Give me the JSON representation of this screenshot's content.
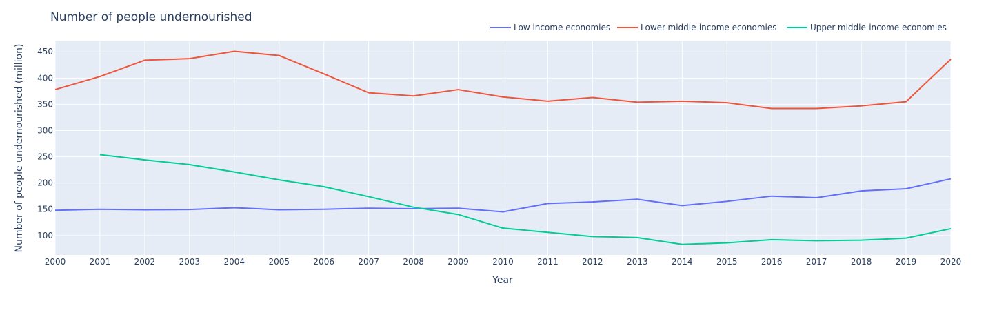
{
  "chart_data": {
    "type": "line",
    "title": "Number of people undernourished",
    "xlabel": "Year",
    "ylabel": "Number of people undernourished (million)",
    "x": [
      2000,
      2001,
      2002,
      2003,
      2004,
      2005,
      2006,
      2007,
      2008,
      2009,
      2010,
      2011,
      2012,
      2013,
      2014,
      2015,
      2016,
      2017,
      2018,
      2019,
      2020
    ],
    "xlim": [
      2000,
      2020
    ],
    "ylim": [
      63,
      470
    ],
    "y_ticks": [
      100,
      150,
      200,
      250,
      300,
      350,
      400,
      450
    ],
    "grid": true,
    "legend_position": "top-right",
    "series": [
      {
        "name": "Low income economies",
        "color": "#636efa",
        "values": [
          148,
          150,
          149,
          149.5,
          153,
          149,
          150,
          152,
          151,
          152,
          145,
          161,
          164,
          169,
          157,
          165,
          175,
          172,
          185,
          189,
          208
        ]
      },
      {
        "name": "Lower-middle-income economies",
        "color": "#ef553b",
        "values": [
          378,
          403,
          434,
          437,
          451,
          443,
          408,
          372,
          366,
          378,
          364,
          356,
          363,
          354,
          356,
          353,
          342,
          342,
          347,
          355,
          436
        ]
      },
      {
        "name": "Upper-middle-income economies",
        "color": "#00cc96",
        "values": [
          null,
          254,
          244,
          235,
          221,
          206,
          193,
          174,
          154,
          140,
          114,
          106,
          98,
          96,
          83,
          86,
          92,
          90,
          91,
          95,
          113
        ]
      }
    ]
  }
}
